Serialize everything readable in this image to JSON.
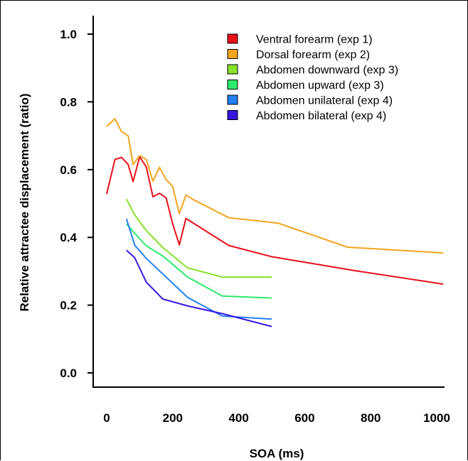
{
  "chart_data": {
    "type": "line",
    "xlabel": "SOA (ms)",
    "ylabel": "Relative attractee displacement (ratio)",
    "xlim": [
      -40,
      1060
    ],
    "ylim": [
      -0.05,
      1.02
    ],
    "xticks": [
      0,
      200,
      400,
      600,
      800,
      1000
    ],
    "yticks": [
      0.0,
      0.2,
      0.4,
      0.6,
      0.8,
      1.0
    ],
    "xtick_labels": [
      "0",
      "200",
      "400",
      "600",
      "800",
      "1000"
    ],
    "ytick_labels": [
      "0.0",
      "0.2",
      "0.4",
      "0.6",
      "0.8",
      "1.0"
    ],
    "legend_position": "top-right",
    "grid": false,
    "series": [
      {
        "name": "Ventral forearm (exp 1)",
        "color": "#e8111a",
        "x": [
          0,
          25,
          45,
          65,
          80,
          100,
          120,
          140,
          160,
          180,
          200,
          220,
          240,
          370,
          500,
          750,
          1020
        ],
        "y": [
          0.528,
          0.63,
          0.636,
          0.615,
          0.565,
          0.638,
          0.608,
          0.52,
          0.53,
          0.517,
          0.44,
          0.378,
          0.456,
          0.376,
          0.343,
          0.302,
          0.262
        ]
      },
      {
        "name": "Dorsal forearm (exp 2)",
        "color": "#f4a41c",
        "x": [
          0,
          25,
          45,
          65,
          80,
          100,
          120,
          140,
          160,
          180,
          200,
          220,
          240,
          265,
          370,
          520,
          730,
          1020
        ],
        "y": [
          0.728,
          0.75,
          0.712,
          0.7,
          0.615,
          0.641,
          0.63,
          0.566,
          0.607,
          0.571,
          0.55,
          0.47,
          0.525,
          0.51,
          0.458,
          0.442,
          0.371,
          0.354
        ]
      },
      {
        "name": "Abdomen downward (exp 3)",
        "color": "#86e22a",
        "x": [
          60,
          85,
          120,
          170,
          245,
          350,
          500
        ],
        "y": [
          0.513,
          0.466,
          0.42,
          0.37,
          0.31,
          0.283,
          0.283
        ]
      },
      {
        "name": "Abdomen upward (exp 3)",
        "color": "#2bea6a",
        "x": [
          60,
          85,
          120,
          170,
          245,
          350,
          500
        ],
        "y": [
          0.44,
          0.412,
          0.375,
          0.345,
          0.283,
          0.227,
          0.221
        ]
      },
      {
        "name": "Abdomen unilateral (exp 4)",
        "color": "#2080f2",
        "x": [
          60,
          85,
          120,
          170,
          245,
          350,
          500
        ],
        "y": [
          0.455,
          0.377,
          0.338,
          0.292,
          0.223,
          0.168,
          0.159
        ]
      },
      {
        "name": "Abdomen bilateral (exp 4)",
        "color": "#3816e2",
        "x": [
          60,
          85,
          120,
          170,
          245,
          350,
          500
        ],
        "y": [
          0.362,
          0.34,
          0.268,
          0.218,
          0.198,
          0.175,
          0.137
        ]
      }
    ]
  }
}
